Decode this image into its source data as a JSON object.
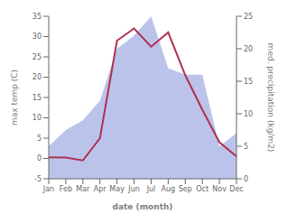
{
  "chart_data": {
    "type": "line",
    "xlabel": "date (month)",
    "ylabel": "max temp (C)",
    "y2label": "med. precipitation (kg/m2)",
    "categories": [
      "Jan",
      "Feb",
      "Mar",
      "Apr",
      "May",
      "Jun",
      "Jul",
      "Aug",
      "Sep",
      "Oct",
      "Nov",
      "Dec"
    ],
    "series": [
      {
        "type": "area",
        "color": "#b0b8e8",
        "axis": "y2",
        "values": [
          5.0,
          7.5,
          9.0,
          12.0,
          20.0,
          22.0,
          25.0,
          17.0,
          16.0,
          16.0,
          5.0,
          7.0
        ]
      },
      {
        "type": "line",
        "color": "#b03050",
        "values": [
          0.3,
          0.2,
          -0.5,
          5.0,
          29.0,
          32.0,
          27.5,
          31.0,
          20.5,
          12.0,
          4.0,
          0.5
        ]
      }
    ],
    "ylim": [
      -5,
      35
    ],
    "yticks": [
      -5,
      0,
      5,
      10,
      15,
      20,
      25,
      30,
      35
    ],
    "y2lim": [
      0,
      25
    ],
    "y2ticks": [
      0,
      5,
      10,
      15,
      20,
      25
    ],
    "grid": false
  }
}
